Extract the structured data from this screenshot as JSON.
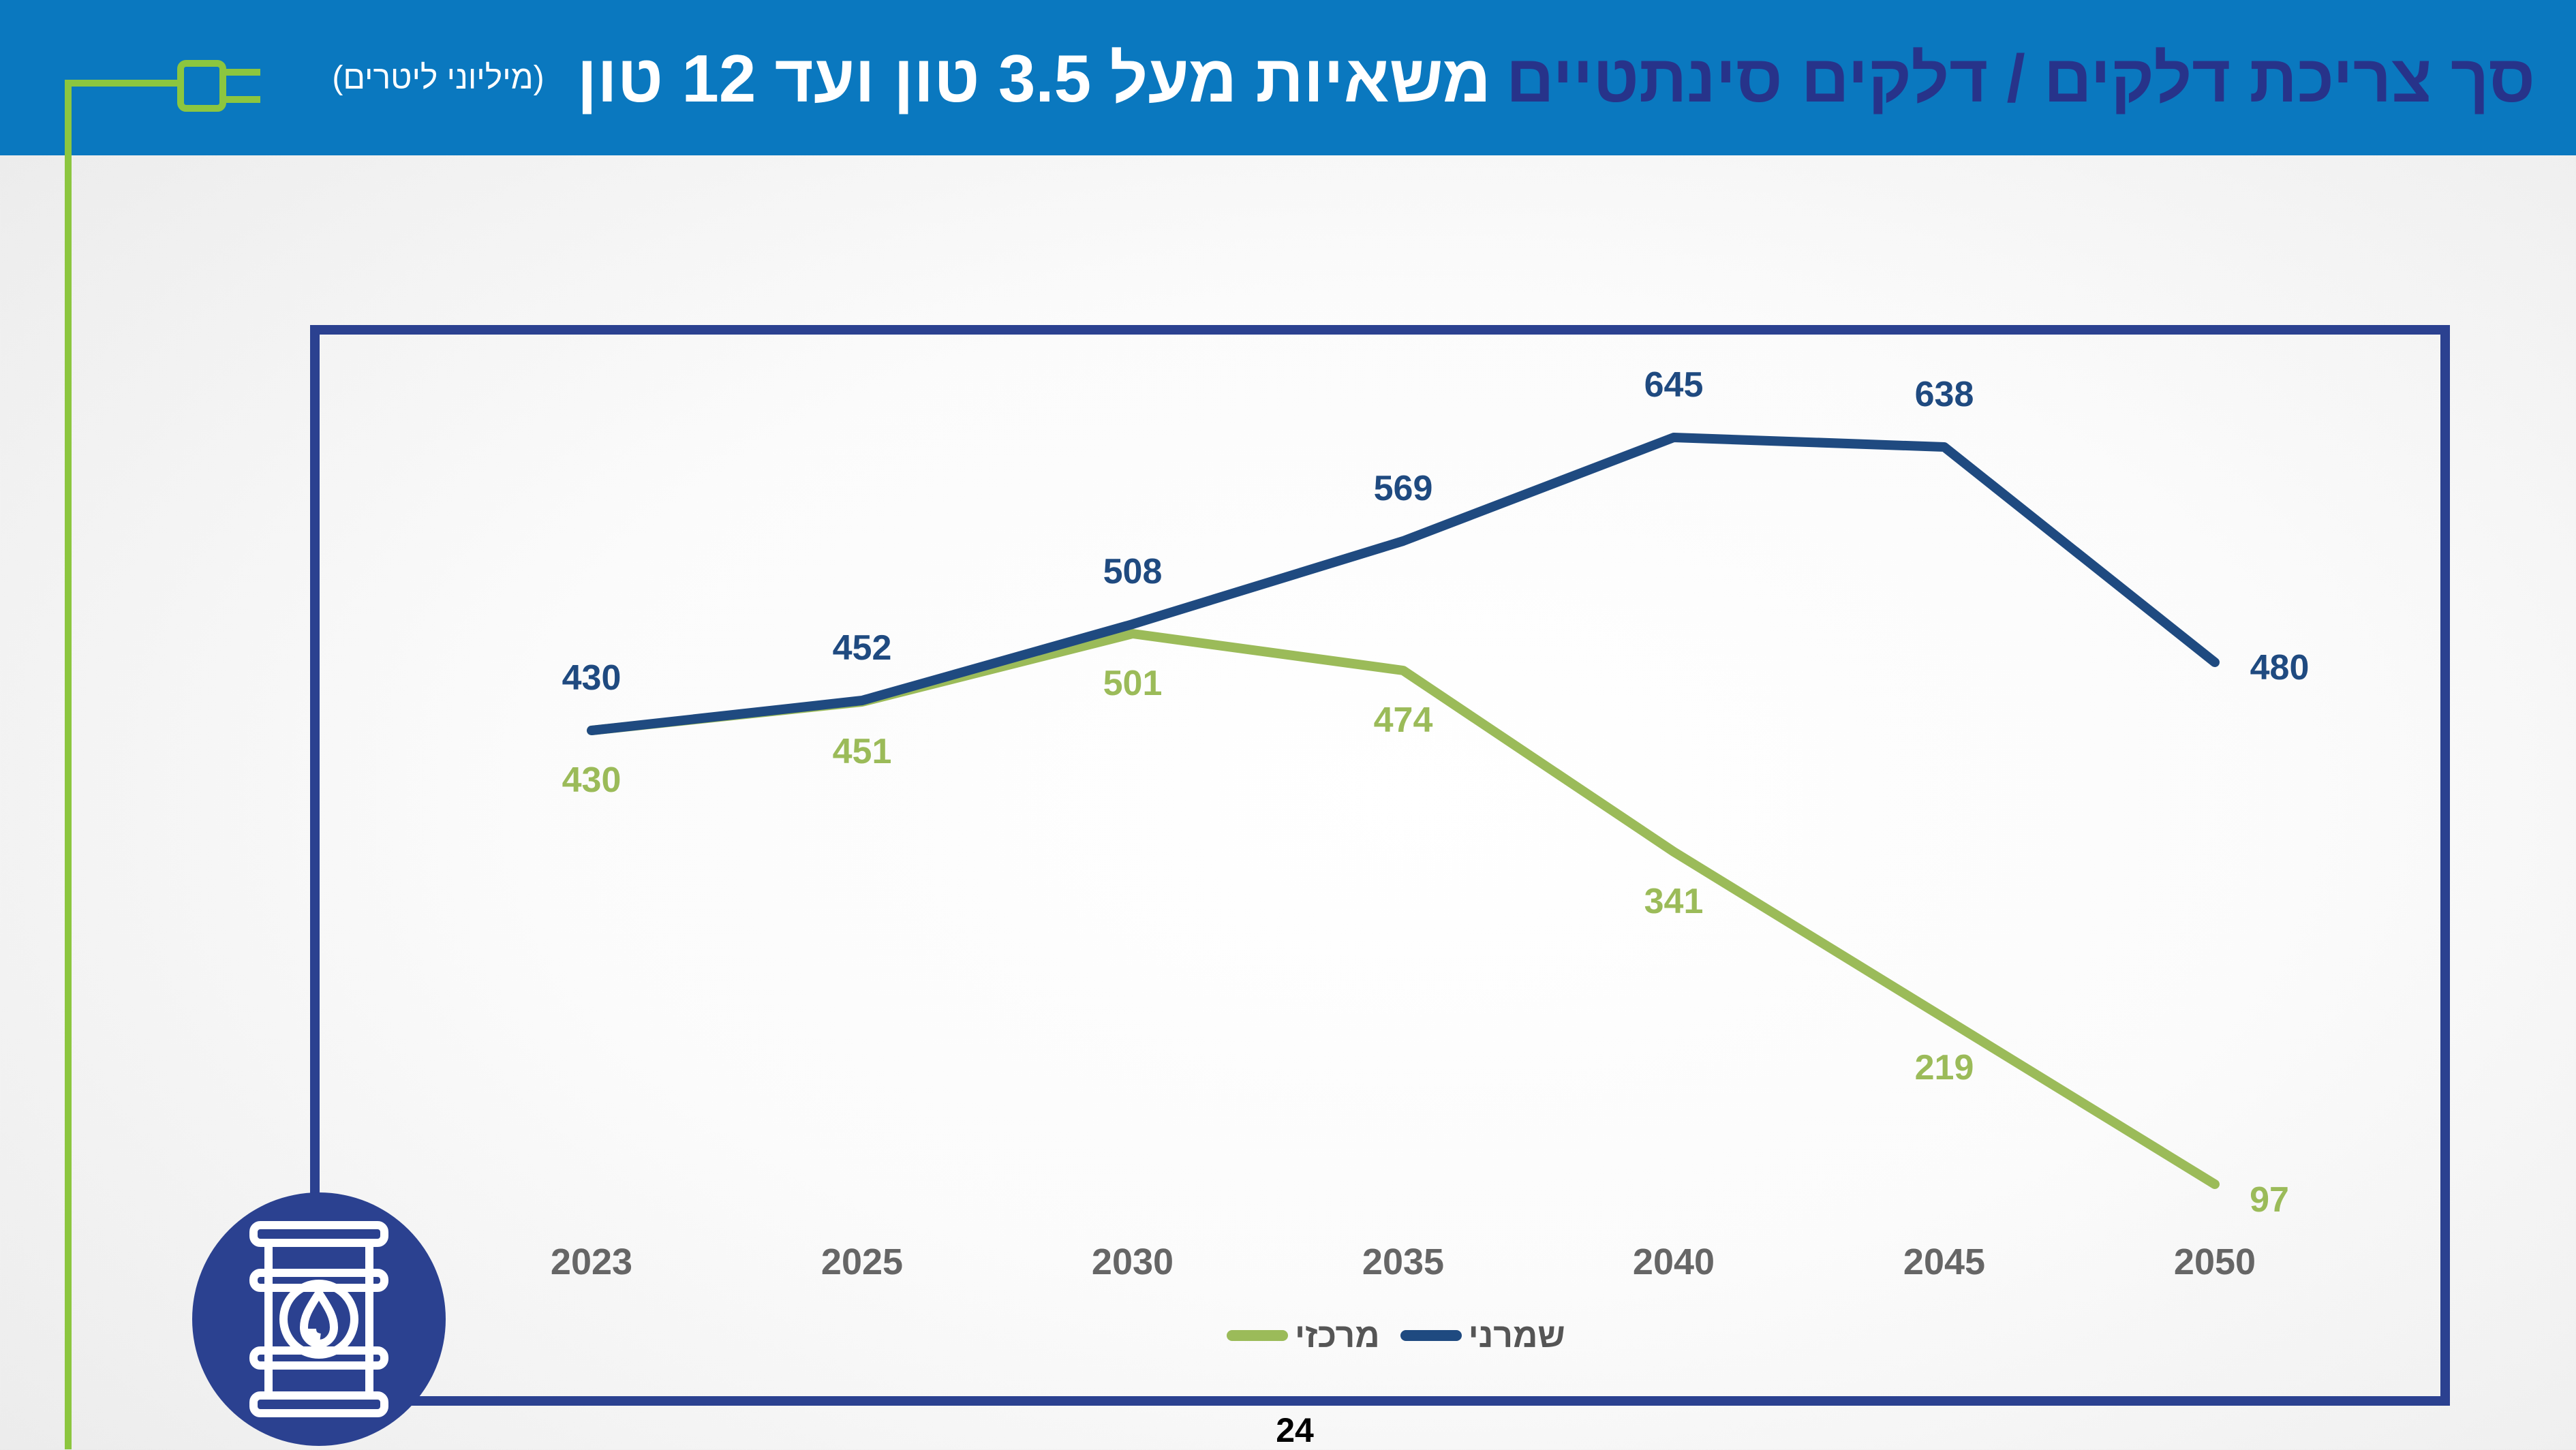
{
  "header": {
    "title_main": "סך צריכת דלקים / דלקים סינתטיים",
    "title_vehicle": "משאיות מעל 3.5 טון ועד 12 טון",
    "units": "(מיליוני ליטרים)"
  },
  "icons": {
    "plug": "plug-icon",
    "barrel": "oil-barrel-icon"
  },
  "colors": {
    "header_bg": "#0a78bf",
    "frame": "#2b4190",
    "series_conservative": "#1f4a80",
    "series_central": "#9bbb59",
    "plug_line": "#8cc63f"
  },
  "chart_data": {
    "type": "line",
    "x": [
      "2023",
      "2025",
      "2030",
      "2035",
      "2040",
      "2045",
      "2050"
    ],
    "series": [
      {
        "name": "שמרני",
        "values": [
          430,
          452,
          508,
          569,
          645,
          638,
          480
        ],
        "color": "#1f4a80"
      },
      {
        "name": "מרכזי",
        "values": [
          430,
          451,
          501,
          474,
          341,
          219,
          97
        ],
        "color": "#9bbb59"
      }
    ],
    "ylim": [
      0,
      700
    ],
    "grid": false,
    "legend": "bottom-center"
  },
  "page_number": "24"
}
